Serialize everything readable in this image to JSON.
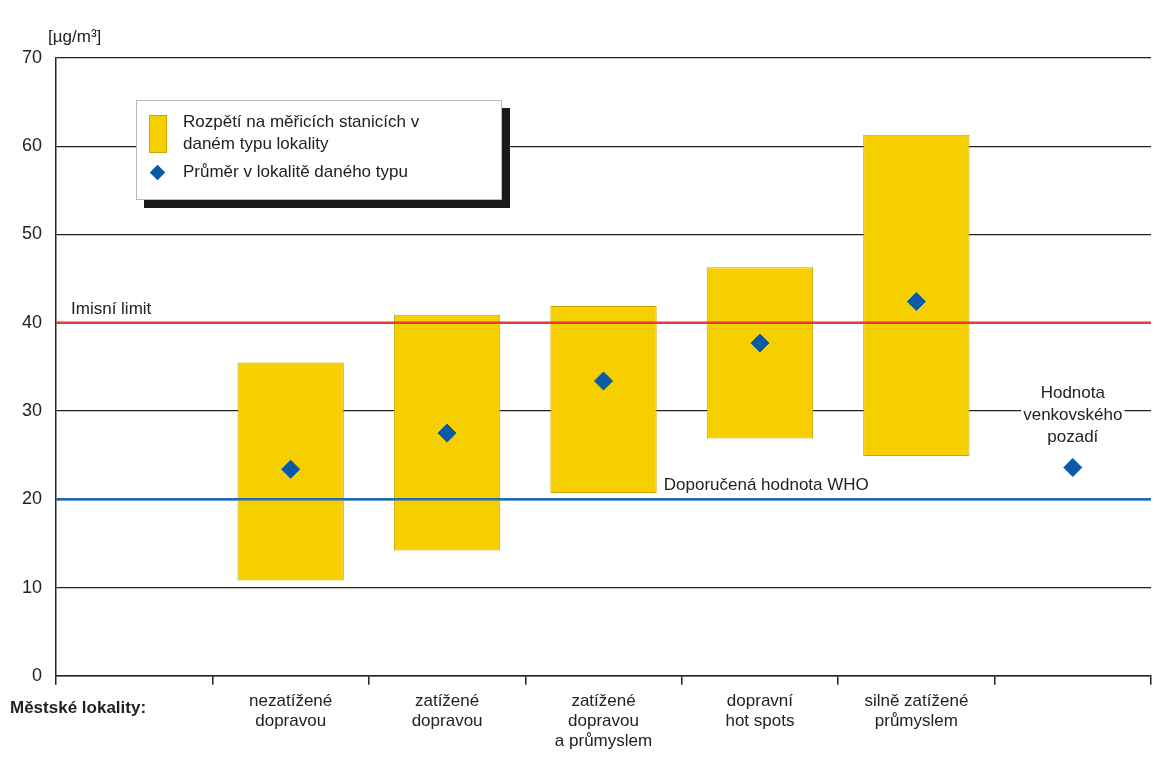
{
  "chart_data": {
    "type": "bar",
    "ylabel": "[µg/m³]",
    "xlabel": "Městské lokality:",
    "categories": [
      null,
      "nezatížené\ndopravou",
      "zatížené\ndopravou",
      "zatížené\ndopravou\na průmyslem",
      "dopravní\nhot spots",
      "silně zatížené\nprůmyslem",
      null
    ],
    "series": [
      {
        "type": "bar",
        "name": "Rozpětí na měřicích stanicích v daném typu lokality",
        "color": "#f5cf00",
        "base": [
          null,
          10.8,
          14.2,
          20.7,
          26.9,
          24.9,
          null
        ],
        "values": [
          null,
          24.7,
          26.7,
          21.2,
          19.4,
          36.4,
          null
        ]
      },
      {
        "type": "scatter",
        "name": "Průměr v lokalitě daného typu",
        "color": "#0a5aa5",
        "marker": "diamond",
        "values": [
          null,
          23.4,
          27.5,
          33.4,
          37.7,
          42.4,
          23.6
        ]
      }
    ],
    "ylim": [
      0,
      70
    ],
    "yticks": [
      0,
      10,
      20,
      30,
      40,
      50,
      60,
      70
    ],
    "grid": "y",
    "legend": "top left",
    "ref_lines": [
      {
        "axis": "y",
        "value": 40,
        "label": "Imisní limit",
        "color": "#e8393a"
      },
      {
        "axis": "y",
        "value": 20,
        "label": "Doporučená hodnota WHO",
        "color": "#1f6cb4"
      }
    ],
    "annotations": [
      {
        "text": "Hodnota\nvenkovského\npozadí",
        "y": 23.6
      }
    ]
  }
}
